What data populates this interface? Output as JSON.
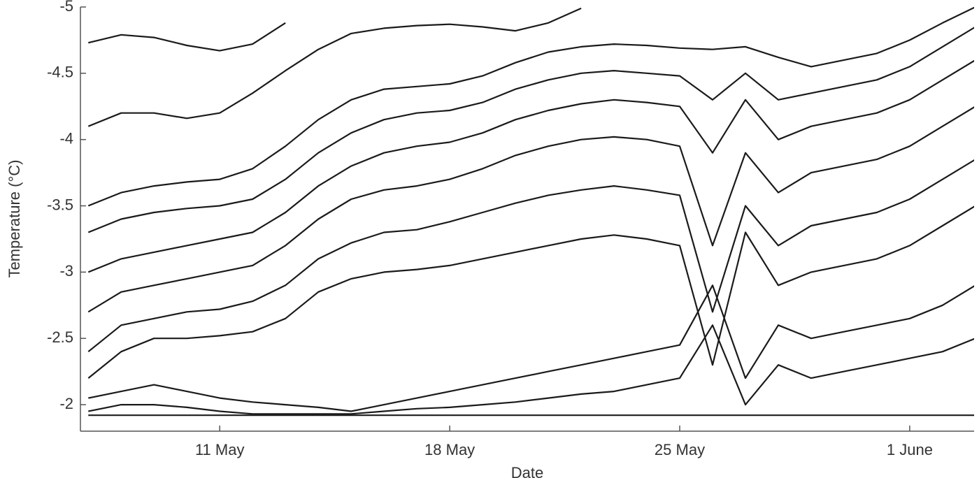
{
  "chart_data": {
    "type": "line",
    "xlabel": "Date",
    "ylabel": "Temperature (°C)",
    "x": [
      7,
      8,
      9,
      10,
      11,
      12,
      13,
      14,
      15,
      16,
      17,
      18,
      19,
      20,
      21,
      22,
      23,
      24,
      25,
      26,
      27,
      28,
      29,
      30,
      31,
      32,
      33,
      34
    ],
    "xlim": [
      6.76,
      33.96
    ],
    "xticks": [
      {
        "value": 11,
        "label": "11 May"
      },
      {
        "value": 18,
        "label": "18 May"
      },
      {
        "value": 25,
        "label": "25 May"
      },
      {
        "value": 32,
        "label": "1 June"
      }
    ],
    "ylim": [
      -1.8,
      -5
    ],
    "yticks": [
      -5,
      -4.5,
      -4,
      -3.5,
      -3,
      -2.5,
      -2
    ],
    "series": [
      {
        "color": "#1a1a1a",
        "values": [
          -4.73,
          -4.79,
          -4.77,
          -4.71,
          -4.67,
          -4.72,
          -4.88,
          null,
          null,
          null,
          null,
          null,
          null,
          null,
          null,
          null,
          null,
          null,
          null,
          null,
          null,
          null,
          null,
          null,
          null,
          null,
          null,
          null
        ]
      },
      {
        "color": "#1a1a1a",
        "values": [
          -4.1,
          -4.2,
          -4.2,
          -4.16,
          -4.2,
          -4.35,
          -4.52,
          -4.68,
          -4.8,
          -4.84,
          -4.86,
          -4.87,
          -4.85,
          -4.82,
          -4.88,
          -4.99,
          null,
          null,
          null,
          null,
          null,
          null,
          null,
          null,
          null,
          null,
          null,
          null
        ]
      },
      {
        "color": "#1a1a1a",
        "values": [
          -3.5,
          -3.6,
          -3.65,
          -3.68,
          -3.7,
          -3.78,
          -3.95,
          -4.15,
          -4.3,
          -4.38,
          -4.4,
          -4.42,
          -4.48,
          -4.58,
          -4.66,
          -4.7,
          -4.72,
          -4.71,
          -4.69,
          -4.68,
          -4.7,
          -4.62,
          -4.55,
          -4.6,
          -4.65,
          -4.75,
          -4.88,
          -5.0
        ]
      },
      {
        "color": "#1a1a1a",
        "values": [
          -3.3,
          -3.4,
          -3.45,
          -3.48,
          -3.5,
          -3.55,
          -3.7,
          -3.9,
          -4.05,
          -4.15,
          -4.2,
          -4.22,
          -4.28,
          -4.38,
          -4.45,
          -4.5,
          -4.52,
          -4.5,
          -4.48,
          -4.3,
          -4.5,
          -4.3,
          -4.35,
          -4.4,
          -4.45,
          -4.55,
          -4.7,
          -4.85
        ]
      },
      {
        "color": "#1a1a1a",
        "values": [
          -3.0,
          -3.1,
          -3.15,
          -3.2,
          -3.25,
          -3.3,
          -3.45,
          -3.65,
          -3.8,
          -3.9,
          -3.95,
          -3.98,
          -4.05,
          -4.15,
          -4.22,
          -4.27,
          -4.3,
          -4.28,
          -4.25,
          -3.9,
          -4.3,
          -4.0,
          -4.1,
          -4.15,
          -4.2,
          -4.3,
          -4.45,
          -4.6
        ]
      },
      {
        "color": "#1a1a1a",
        "values": [
          -2.7,
          -2.85,
          -2.9,
          -2.95,
          -3.0,
          -3.05,
          -3.2,
          -3.4,
          -3.55,
          -3.62,
          -3.65,
          -3.7,
          -3.78,
          -3.88,
          -3.95,
          -4.0,
          -4.02,
          -4.0,
          -3.95,
          -3.2,
          -3.9,
          -3.6,
          -3.75,
          -3.8,
          -3.85,
          -3.95,
          -4.1,
          -4.25
        ]
      },
      {
        "color": "#1a1a1a",
        "values": [
          -2.4,
          -2.6,
          -2.65,
          -2.7,
          -2.72,
          -2.78,
          -2.9,
          -3.1,
          -3.22,
          -3.3,
          -3.32,
          -3.38,
          -3.45,
          -3.52,
          -3.58,
          -3.62,
          -3.65,
          -3.62,
          -3.58,
          -2.7,
          -3.5,
          -3.2,
          -3.35,
          -3.4,
          -3.45,
          -3.55,
          -3.7,
          -3.85
        ]
      },
      {
        "color": "#1a1a1a",
        "values": [
          -2.2,
          -2.4,
          -2.5,
          -2.5,
          -2.52,
          -2.55,
          -2.65,
          -2.85,
          -2.95,
          -3.0,
          -3.02,
          -3.05,
          -3.1,
          -3.15,
          -3.2,
          -3.25,
          -3.28,
          -3.25,
          -3.2,
          -2.3,
          -3.3,
          -2.9,
          -3.0,
          -3.05,
          -3.1,
          -3.2,
          -3.35,
          -3.5
        ]
      },
      {
        "color": "#1a1a1a",
        "values": [
          -2.05,
          -2.1,
          -2.15,
          -2.1,
          -2.05,
          -2.02,
          -2.0,
          -1.98,
          -1.95,
          -2.0,
          -2.05,
          -2.1,
          -2.15,
          -2.2,
          -2.25,
          -2.3,
          -2.35,
          -2.4,
          -2.45,
          -2.9,
          -2.2,
          -2.6,
          -2.5,
          -2.55,
          -2.6,
          -2.65,
          -2.75,
          -2.9
        ]
      },
      {
        "color": "#1a1a1a",
        "values": [
          -1.95,
          -2.0,
          -2.0,
          -1.98,
          -1.95,
          -1.93,
          -1.93,
          -1.93,
          -1.93,
          -1.95,
          -1.97,
          -1.98,
          -2.0,
          -2.02,
          -2.05,
          -2.08,
          -2.1,
          -2.15,
          -2.2,
          -2.6,
          -2.0,
          -2.3,
          -2.2,
          -2.25,
          -2.3,
          -2.35,
          -2.4,
          -2.5
        ]
      },
      {
        "color": "#1a1a1a",
        "values": [
          -1.92,
          -1.92,
          -1.92,
          -1.92,
          -1.92,
          -1.92,
          -1.92,
          -1.92,
          -1.92,
          -1.92,
          -1.92,
          -1.92,
          -1.92,
          -1.92,
          -1.92,
          -1.92,
          -1.92,
          -1.92,
          -1.92,
          -1.92,
          -1.92,
          -1.92,
          -1.92,
          -1.92,
          -1.92,
          -1.92,
          -1.92,
          -1.92
        ]
      }
    ]
  }
}
